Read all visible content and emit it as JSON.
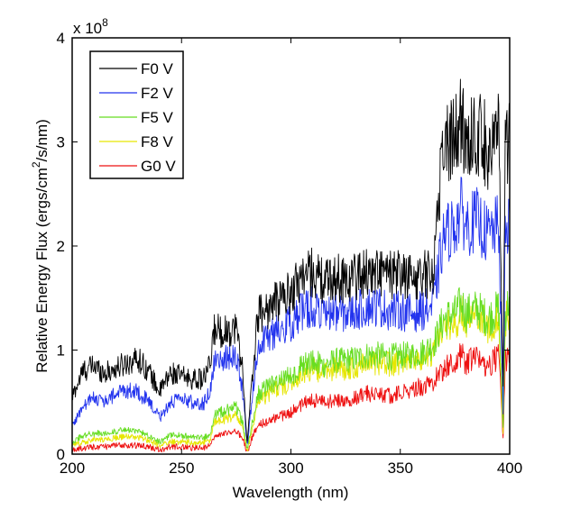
{
  "chart_data": {
    "type": "line",
    "title": "",
    "xlabel": "Wavelength (nm)",
    "ylabel_prefix": "Relative Energy Flux (ergs/cm",
    "ylabel_sup": "2",
    "ylabel_suffix": "/s/nm)",
    "xlim": [
      200,
      400
    ],
    "ylim": [
      0,
      4
    ],
    "y_multiplier": "x 10",
    "y_multiplier_exp": "8",
    "xticks": [
      200,
      250,
      300,
      350,
      400
    ],
    "yticks": [
      0,
      1,
      2,
      3,
      4
    ],
    "xtick_labels": [
      "200",
      "250",
      "300",
      "350",
      "400"
    ],
    "ytick_labels": [
      "0",
      "1",
      "2",
      "3",
      "4"
    ],
    "grid": false,
    "legend_position": "top-left",
    "series": [
      {
        "name": "F0 V",
        "color": "#000000",
        "x": [
          200,
          205,
          210,
          215,
          220,
          225,
          230,
          235,
          240,
          245,
          250,
          255,
          260,
          263,
          265,
          270,
          275,
          278,
          280,
          283,
          285,
          290,
          295,
          300,
          305,
          310,
          315,
          320,
          325,
          330,
          335,
          340,
          345,
          350,
          355,
          360,
          365,
          368,
          370,
          375,
          378,
          380,
          385,
          390,
          395,
          397,
          398,
          400
        ],
        "values": [
          0.55,
          0.8,
          0.85,
          0.78,
          0.82,
          0.88,
          0.92,
          0.8,
          0.6,
          0.78,
          0.75,
          0.72,
          0.72,
          0.85,
          1.2,
          1.18,
          1.22,
          0.8,
          0.1,
          0.9,
          1.35,
          1.4,
          1.5,
          1.55,
          1.72,
          1.75,
          1.65,
          1.7,
          1.68,
          1.72,
          1.75,
          1.75,
          1.72,
          1.72,
          1.7,
          1.72,
          1.75,
          2.6,
          3.0,
          3.05,
          3.2,
          3.0,
          3.1,
          2.95,
          3.05,
          0.6,
          2.9,
          3.05
        ]
      },
      {
        "name": "F2 V",
        "color": "#2233ee",
        "x": [
          200,
          205,
          210,
          215,
          220,
          225,
          230,
          235,
          240,
          245,
          250,
          255,
          260,
          263,
          265,
          270,
          275,
          278,
          280,
          283,
          285,
          290,
          295,
          300,
          305,
          310,
          315,
          320,
          325,
          330,
          335,
          340,
          345,
          350,
          355,
          360,
          365,
          368,
          370,
          375,
          378,
          380,
          385,
          390,
          395,
          397,
          398,
          400
        ],
        "values": [
          0.28,
          0.45,
          0.55,
          0.5,
          0.58,
          0.62,
          0.6,
          0.5,
          0.35,
          0.5,
          0.52,
          0.5,
          0.48,
          0.6,
          0.9,
          0.92,
          0.95,
          0.6,
          0.08,
          0.7,
          1.05,
          1.12,
          1.22,
          1.25,
          1.38,
          1.42,
          1.32,
          1.38,
          1.35,
          1.38,
          1.42,
          1.42,
          1.38,
          1.38,
          1.35,
          1.38,
          1.42,
          1.85,
          2.1,
          2.2,
          2.35,
          2.2,
          2.25,
          2.1,
          2.2,
          0.4,
          2.1,
          2.3
        ]
      },
      {
        "name": "F5 V",
        "color": "#66dd22",
        "x": [
          200,
          205,
          210,
          215,
          220,
          225,
          230,
          235,
          240,
          245,
          250,
          255,
          260,
          263,
          265,
          270,
          275,
          278,
          280,
          283,
          285,
          290,
          295,
          300,
          305,
          310,
          315,
          320,
          325,
          330,
          335,
          340,
          345,
          350,
          355,
          360,
          365,
          368,
          370,
          375,
          378,
          380,
          385,
          390,
          395,
          397,
          398,
          400
        ],
        "values": [
          0.12,
          0.18,
          0.2,
          0.2,
          0.22,
          0.23,
          0.22,
          0.18,
          0.12,
          0.18,
          0.18,
          0.16,
          0.16,
          0.18,
          0.38,
          0.42,
          0.45,
          0.3,
          0.04,
          0.38,
          0.58,
          0.65,
          0.72,
          0.75,
          0.85,
          0.9,
          0.85,
          0.9,
          0.9,
          0.92,
          0.95,
          0.95,
          0.93,
          0.95,
          0.95,
          0.98,
          1.05,
          1.2,
          1.3,
          1.35,
          1.45,
          1.35,
          1.4,
          1.3,
          1.4,
          0.25,
          1.35,
          1.5
        ]
      },
      {
        "name": "F8 V",
        "color": "#e6e600",
        "x": [
          200,
          205,
          210,
          215,
          220,
          225,
          230,
          235,
          240,
          245,
          250,
          255,
          260,
          263,
          265,
          270,
          275,
          278,
          280,
          283,
          285,
          290,
          295,
          300,
          305,
          310,
          315,
          320,
          325,
          330,
          335,
          340,
          345,
          350,
          355,
          360,
          365,
          368,
          370,
          375,
          378,
          380,
          385,
          390,
          395,
          397,
          398,
          400
        ],
        "values": [
          0.08,
          0.12,
          0.14,
          0.14,
          0.16,
          0.17,
          0.16,
          0.13,
          0.08,
          0.12,
          0.12,
          0.11,
          0.11,
          0.13,
          0.3,
          0.34,
          0.37,
          0.24,
          0.03,
          0.32,
          0.5,
          0.58,
          0.65,
          0.68,
          0.78,
          0.82,
          0.78,
          0.82,
          0.82,
          0.85,
          0.88,
          0.88,
          0.86,
          0.88,
          0.88,
          0.9,
          0.98,
          1.12,
          1.22,
          1.27,
          1.37,
          1.27,
          1.32,
          1.22,
          1.32,
          0.22,
          1.28,
          1.42
        ]
      },
      {
        "name": "G0 V",
        "color": "#ee1111",
        "x": [
          200,
          205,
          210,
          215,
          220,
          225,
          230,
          235,
          240,
          245,
          250,
          255,
          260,
          263,
          265,
          270,
          275,
          278,
          280,
          283,
          285,
          290,
          295,
          300,
          305,
          310,
          315,
          320,
          325,
          330,
          335,
          340,
          345,
          350,
          355,
          360,
          365,
          368,
          370,
          375,
          378,
          380,
          385,
          390,
          395,
          397,
          398,
          400
        ],
        "values": [
          0.04,
          0.06,
          0.07,
          0.07,
          0.08,
          0.09,
          0.08,
          0.07,
          0.04,
          0.07,
          0.07,
          0.06,
          0.06,
          0.08,
          0.16,
          0.2,
          0.22,
          0.15,
          0.02,
          0.2,
          0.28,
          0.32,
          0.36,
          0.4,
          0.48,
          0.52,
          0.5,
          0.52,
          0.52,
          0.55,
          0.58,
          0.58,
          0.56,
          0.6,
          0.62,
          0.65,
          0.7,
          0.78,
          0.82,
          0.88,
          0.95,
          0.88,
          0.92,
          0.85,
          0.95,
          0.15,
          0.9,
          1.0
        ]
      }
    ]
  }
}
